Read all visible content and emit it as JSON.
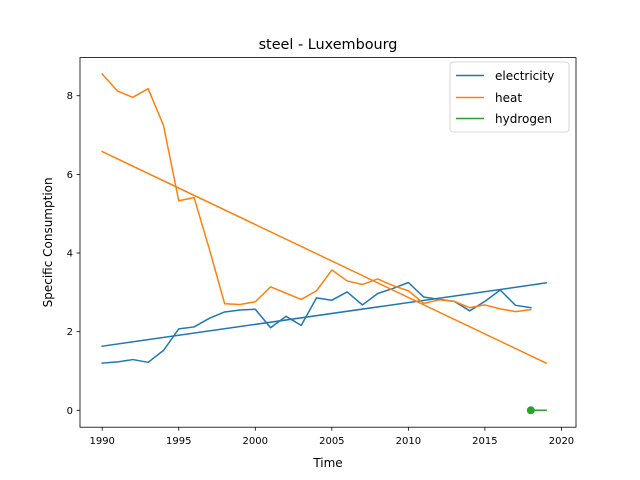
{
  "chart_data": {
    "type": "line",
    "title": "steel - Luxembourg",
    "xlabel": "Time",
    "ylabel": "Specific Consumption",
    "xlim": [
      1988.55,
      2020.95
    ],
    "ylim": [
      -0.43,
      8.97
    ],
    "xticks": [
      1990,
      1995,
      2000,
      2005,
      2010,
      2015,
      2020
    ],
    "yticks": [
      0,
      2,
      4,
      6,
      8
    ],
    "legend_position": "top-right",
    "grid": false,
    "series": [
      {
        "name": "electricity",
        "color": "#1f77b4",
        "x": [
          1990,
          1991,
          1992,
          1993,
          1994,
          1995,
          1996,
          1997,
          1998,
          1999,
          2000,
          2001,
          2002,
          2003,
          2004,
          2005,
          2006,
          2007,
          2008,
          2009,
          2010,
          2011,
          2012,
          2013,
          2014,
          2015,
          2016,
          2017,
          2018
        ],
        "y": [
          1.2,
          1.23,
          1.29,
          1.22,
          1.52,
          2.07,
          2.12,
          2.34,
          2.5,
          2.55,
          2.57,
          2.1,
          2.39,
          2.16,
          2.86,
          2.8,
          3.01,
          2.68,
          2.97,
          3.1,
          3.25,
          2.88,
          2.82,
          2.77,
          2.53,
          2.77,
          3.06,
          2.67,
          2.61
        ]
      },
      {
        "name": "electricity trend",
        "color": "#1f77b4",
        "x": [
          1990,
          2019
        ],
        "y": [
          1.63,
          3.24
        ]
      },
      {
        "name": "heat",
        "color": "#ff7f0e",
        "x": [
          1990,
          1991,
          1992,
          1993,
          1994,
          1995,
          1996,
          1997,
          1998,
          1999,
          2000,
          2001,
          2002,
          2003,
          2004,
          2005,
          2006,
          2007,
          2008,
          2009,
          2010,
          2011,
          2012,
          2013,
          2014,
          2015,
          2016,
          2017,
          2018
        ],
        "y": [
          8.55,
          8.12,
          7.96,
          8.18,
          7.25,
          5.33,
          5.41,
          4.1,
          2.71,
          2.69,
          2.76,
          3.14,
          2.98,
          2.82,
          3.04,
          3.57,
          3.29,
          3.2,
          3.34,
          3.17,
          3.04,
          2.72,
          2.81,
          2.77,
          2.61,
          2.68,
          2.58,
          2.51,
          2.56
        ]
      },
      {
        "name": "heat trend",
        "color": "#ff7f0e",
        "x": [
          1990,
          2019
        ],
        "y": [
          6.58,
          1.2
        ]
      },
      {
        "name": "hydrogen",
        "color": "#2ca02c",
        "x": [
          2018,
          2019
        ],
        "y": [
          0.0,
          0.0
        ],
        "marker_at": [
          2018,
          0.0
        ]
      }
    ],
    "legend": [
      "electricity",
      "heat",
      "hydrogen"
    ]
  }
}
